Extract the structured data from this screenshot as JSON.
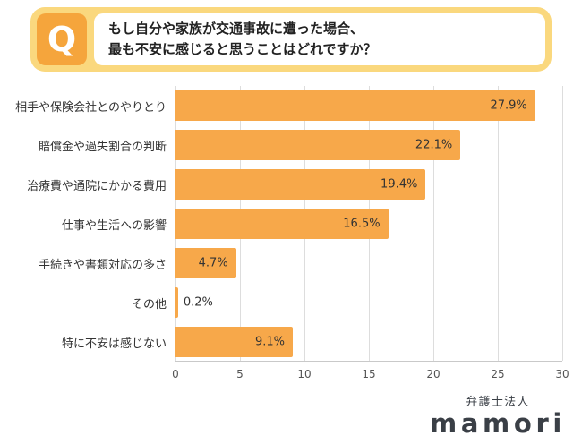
{
  "header": {
    "q_label": "Q",
    "line1": "もし自分や家族が交通事故に遭った場合、",
    "line2": "最も不安に感じると思うことはどれですか？"
  },
  "chart_data": {
    "type": "bar",
    "orientation": "horizontal",
    "title": "もし自分や家族が交通事故に遭った場合、最も不安に感じると思うことはどれですか？",
    "categories": [
      "相手や保険会社とのやりとり",
      "賠償金や過失割合の判断",
      "治療費や通院にかかる費用",
      "仕事や生活への影響",
      "手続きや書類対応の多さ",
      "その他",
      "特に不安は感じない"
    ],
    "values": [
      27.9,
      22.1,
      19.4,
      16.5,
      4.7,
      0.2,
      9.1
    ],
    "value_labels": [
      "27.9%",
      "22.1%",
      "19.4%",
      "16.5%",
      "4.7%",
      "0.2%",
      "9.1%"
    ],
    "xlim": [
      0,
      30
    ],
    "x_ticks": [
      0,
      5,
      10,
      15,
      20,
      25,
      30
    ],
    "grid": true,
    "legend": "none",
    "bar_color": "#F7A84A"
  },
  "footer": {
    "org": "弁護士法人",
    "brand": "mamori"
  },
  "colors": {
    "accent_orange": "#F5A53C",
    "banner_yellow": "#FAD87E",
    "bar_orange": "#F7A84A",
    "text_dark": "#222222",
    "grid_gray": "#dddddd"
  }
}
